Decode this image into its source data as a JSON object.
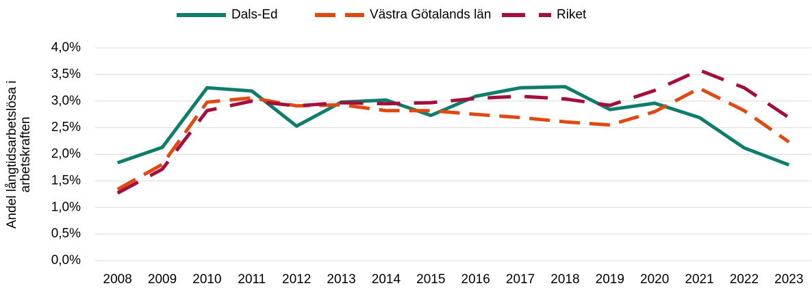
{
  "chart_data": {
    "type": "line",
    "y_label_lines": [
      "Andel långtidsarbetslösa i",
      "arbetskraften"
    ],
    "categories": [
      "2008",
      "2009",
      "2010",
      "2011",
      "2012",
      "2013",
      "2014",
      "2015",
      "2016",
      "2017",
      "2018",
      "2019",
      "2020",
      "2021",
      "2022",
      "2023"
    ],
    "series": [
      {
        "name": "Dals-Ed",
        "color": "#0f7d6b",
        "dash": "solid",
        "values": [
          1.84,
          2.13,
          3.25,
          3.19,
          2.53,
          2.98,
          3.02,
          2.73,
          3.09,
          3.25,
          3.27,
          2.84,
          2.96,
          2.69,
          2.12,
          1.8
        ]
      },
      {
        "name": "Västra Götalands län",
        "color": "#e04a12",
        "dash": "dashed",
        "values": [
          1.34,
          1.81,
          2.98,
          3.06,
          2.91,
          2.93,
          2.82,
          2.82,
          2.75,
          2.69,
          2.61,
          2.55,
          2.8,
          3.24,
          2.82,
          2.23
        ]
      },
      {
        "name": "Riket",
        "color": "#a3103f",
        "dash": "long-dashed",
        "values": [
          1.27,
          1.72,
          2.82,
          3.0,
          2.91,
          2.97,
          2.95,
          2.97,
          3.05,
          3.09,
          3.04,
          2.92,
          3.2,
          3.58,
          3.25,
          2.69
        ]
      }
    ],
    "ylim": [
      0,
      4
    ],
    "yticks": [
      {
        "value": 0,
        "label": "0,0%"
      },
      {
        "value": 0.5,
        "label": "0,5%"
      },
      {
        "value": 1,
        "label": "1,0%"
      },
      {
        "value": 1.5,
        "label": "1,5%"
      },
      {
        "value": 2,
        "label": "2,0%"
      },
      {
        "value": 2.5,
        "label": "2,5%"
      },
      {
        "value": 3,
        "label": "3,0%"
      },
      {
        "value": 3.5,
        "label": "3,5%"
      },
      {
        "value": 4,
        "label": "4,0%"
      }
    ],
    "grid": true,
    "legend": "top"
  }
}
